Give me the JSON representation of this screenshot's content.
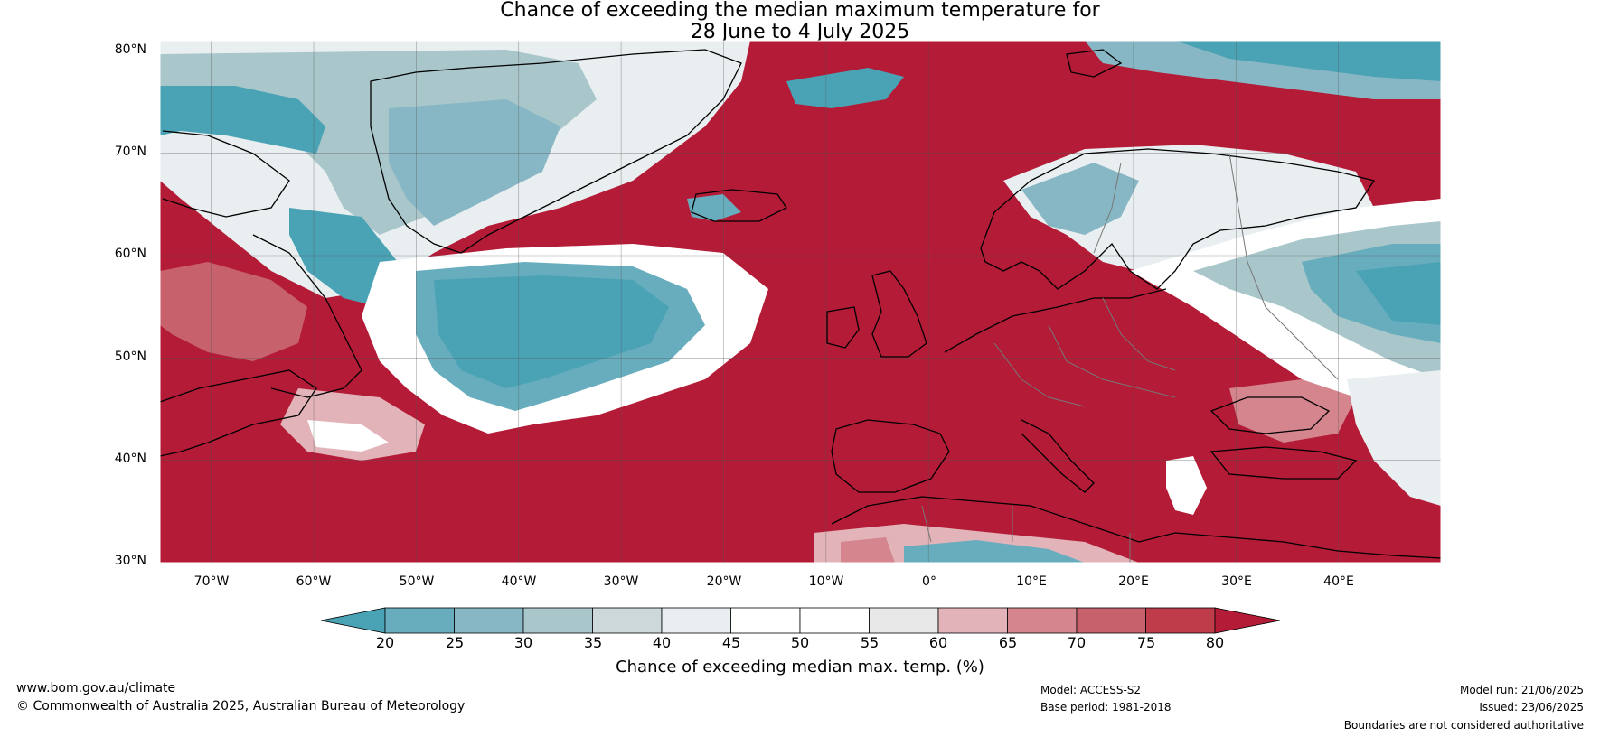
{
  "title": {
    "line1": "Chance of exceeding the median maximum temperature for",
    "line2": "28 June to 4 July 2025"
  },
  "map": {
    "lat_labels": [
      "80°N",
      "70°N",
      "60°N",
      "50°N",
      "40°N",
      "30°N"
    ],
    "lon_labels": [
      "70°W",
      "60°W",
      "50°W",
      "40°W",
      "30°W",
      "20°W",
      "10°W",
      "0°",
      "10°E",
      "20°E",
      "30°E",
      "40°E"
    ],
    "region_lat_range": [
      30,
      81
    ],
    "region_lon_range": [
      -75,
      50
    ]
  },
  "colorbar": {
    "label": "Chance of exceeding median max. temp. (%)",
    "ticks": [
      "20",
      "25",
      "30",
      "35",
      "40",
      "45",
      "50",
      "55",
      "60",
      "65",
      "70",
      "75",
      "80"
    ],
    "colors": {
      "lt20": "#4aa2b5",
      "20_25": "#68adbd",
      "25_30": "#87b7c4",
      "30_35": "#a9c6cb",
      "35_40": "#ccd8da",
      "40_45": "#e9eff1",
      "45_50": "#ffffff",
      "50_55": "#ffffff",
      "55_60": "#e8e8e8",
      "60_65": "#e2b4b9",
      "65_70": "#d4858d",
      "70_75": "#c7626c",
      "75_80": "#bf3d4b",
      "gt80": "#b31b36"
    }
  },
  "footer": {
    "website": "www.bom.gov.au/climate",
    "copyright": "© Commonwealth of Australia 2025, Australian Bureau of Meteorology",
    "model": "Model: ACCESS-S2",
    "base_period": "Base period: 1981-2018",
    "model_run": "Model run: 21/06/2025",
    "issued": "Issued: 23/06/2025",
    "boundaries": "Boundaries are not considered authoritative"
  }
}
